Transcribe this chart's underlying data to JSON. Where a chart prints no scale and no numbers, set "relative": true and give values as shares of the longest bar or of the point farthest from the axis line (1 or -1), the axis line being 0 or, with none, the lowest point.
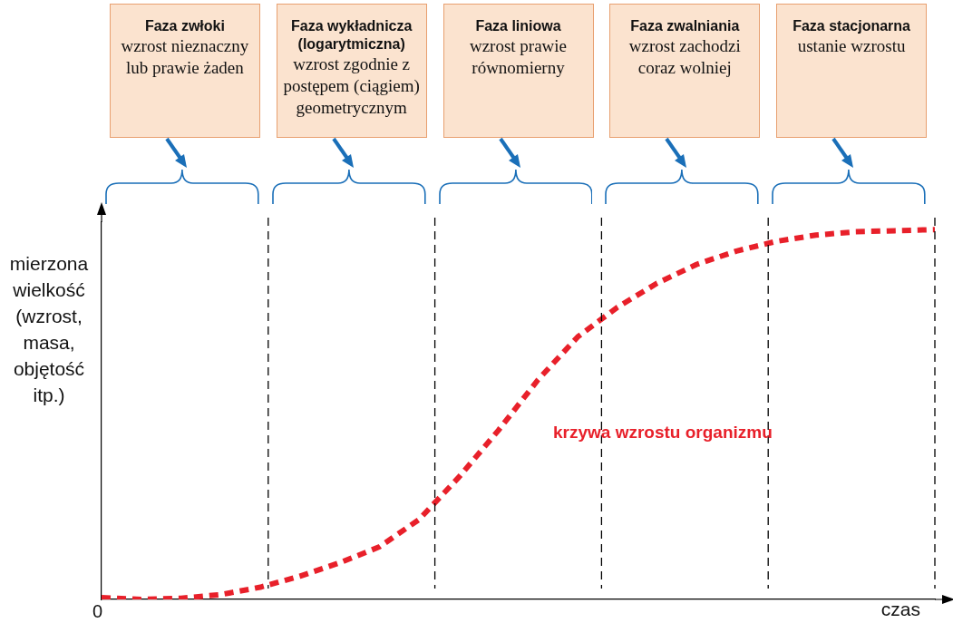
{
  "chart_data": {
    "type": "line",
    "relative": true,
    "xlabel": "czas",
    "ylabel": "mierzona wielkość (wzrost, masa, objętość itp.)",
    "categories": [
      null,
      null,
      null,
      null,
      null,
      null,
      null,
      null,
      null,
      null,
      null,
      null,
      null,
      null,
      null,
      null,
      null,
      null,
      null,
      null,
      null,
      null
    ],
    "series": [
      {
        "name": "krzywa wzrostu organizmu",
        "color": "#e8202a",
        "values": [
          0.005,
          0,
          0.003,
          0.013,
          0.033,
          0.063,
          0.099,
          0.142,
          0.216,
          0.33,
          0.457,
          0.594,
          0.71,
          0.79,
          0.855,
          0.906,
          0.942,
          0.968,
          0.985,
          0.994,
          0.997,
          1
        ]
      }
    ],
    "line_style": "dashed",
    "marker": "none",
    "grid": false,
    "legend": false,
    "annotations": [
      "0",
      "Faza zwłoki\nwzrost nieznaczny lub prawie żaden",
      "Faza wykładnicza (logarytmiczna)\nwzrost zgodnie z postępem (ciągiem) geometrycznym",
      "Faza liniowa\nwzrost prawie równomierny",
      "Faza zwalniania\nwzrost zachodzi coraz wolniej",
      "Faza stacjonarna\nustanie wzrostu"
    ]
  }
}
